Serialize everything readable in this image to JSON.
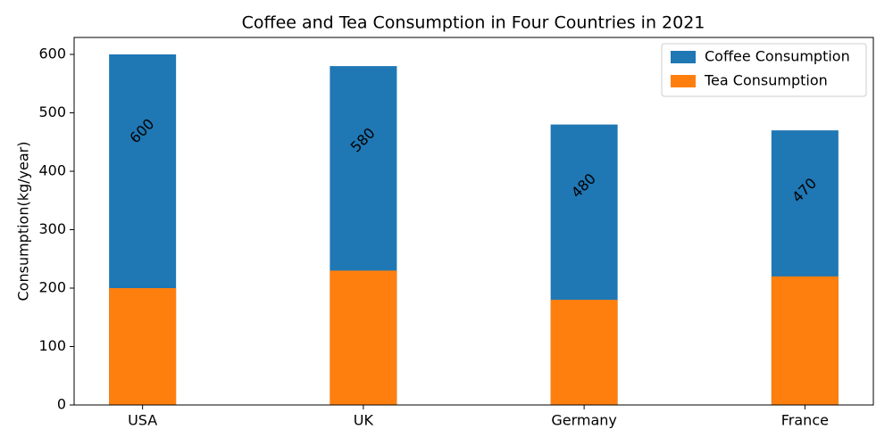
{
  "chart_data": {
    "type": "bar",
    "title": "Coffee and Tea Consumption in Four Countries in 2021",
    "y_label": "Consumption(kg/year)",
    "categories": [
      "USA",
      "UK",
      "Germany",
      "France"
    ],
    "series": [
      {
        "name": "Coffee Consumption",
        "color": "#1f77b4",
        "values": [
          600,
          580,
          480,
          470
        ]
      },
      {
        "name": "Tea Consumption",
        "color": "#ff7f0e",
        "values": [
          200,
          230,
          180,
          220
        ]
      }
    ],
    "ylim": [
      0,
      629
    ],
    "yticks": [
      0,
      100,
      200,
      300,
      400,
      500,
      600
    ],
    "legend": "upper right",
    "data_labels_series": 0
  }
}
